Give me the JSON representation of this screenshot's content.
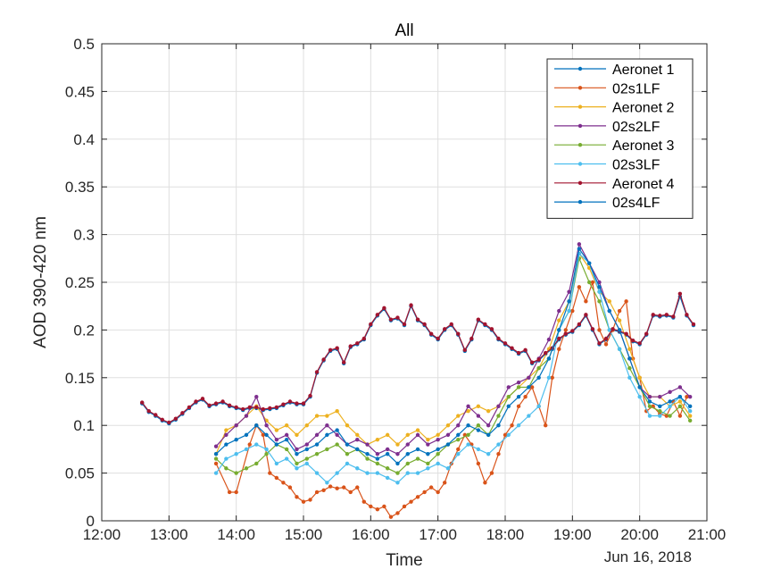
{
  "chart_data": {
    "type": "line",
    "title": "All",
    "xlabel": "Time",
    "ylabel": "AOD 390-420 nm",
    "date_label": "Jun 16, 2018",
    "x_unit": "hour of day",
    "xlim": [
      12,
      21
    ],
    "ylim": [
      0,
      0.5
    ],
    "x_ticks": [
      12,
      13,
      14,
      15,
      16,
      17,
      18,
      19,
      20,
      21
    ],
    "x_tick_labels": [
      "12:00",
      "13:00",
      "14:00",
      "15:00",
      "16:00",
      "17:00",
      "18:00",
      "19:00",
      "20:00",
      "21:00"
    ],
    "y_ticks": [
      0,
      0.05,
      0.1,
      0.15,
      0.2,
      0.25,
      0.3,
      0.35,
      0.4,
      0.45,
      0.5
    ],
    "y_tick_labels": [
      "0",
      "0.05",
      "0.1",
      "0.15",
      "0.2",
      "0.25",
      "0.3",
      "0.35",
      "0.4",
      "0.45",
      "0.5"
    ],
    "grid": true,
    "legend_position": "top-right",
    "series": [
      {
        "name": "Aeronet 1",
        "color": "#0072BD",
        "x": [
          12.6,
          12.7,
          12.8,
          12.9,
          13.0,
          13.1,
          13.2,
          13.3,
          13.4,
          13.5,
          13.6,
          13.7,
          13.8,
          13.9,
          14.0,
          14.1,
          14.2,
          14.3,
          14.4,
          14.5,
          14.6,
          14.7,
          14.8,
          14.9,
          15.0,
          15.1,
          15.2,
          15.3,
          15.4,
          15.5,
          15.6,
          15.7,
          15.8,
          15.9,
          16.0,
          16.1,
          16.2,
          16.3,
          16.4,
          16.5,
          16.6,
          16.7,
          16.8,
          16.9,
          17.0,
          17.1,
          17.2,
          17.3,
          17.4,
          17.5,
          17.6,
          17.7,
          17.8,
          17.9,
          18.0,
          18.1,
          18.2,
          18.3,
          18.4,
          18.5,
          18.6,
          18.7,
          18.8,
          18.9,
          19.0,
          19.1,
          19.2,
          19.3,
          19.4,
          19.5,
          19.6,
          19.7,
          19.8,
          19.9,
          20.0,
          20.1,
          20.2,
          20.3,
          20.4,
          20.5,
          20.6,
          20.7,
          20.8
        ],
        "y": [
          0.123,
          0.114,
          0.11,
          0.105,
          0.102,
          0.106,
          0.112,
          0.118,
          0.124,
          0.127,
          0.12,
          0.122,
          0.124,
          0.12,
          0.118,
          0.116,
          0.118,
          0.118,
          0.116,
          0.117,
          0.118,
          0.121,
          0.124,
          0.122,
          0.122,
          0.13,
          0.155,
          0.168,
          0.178,
          0.18,
          0.165,
          0.182,
          0.185,
          0.19,
          0.205,
          0.215,
          0.222,
          0.21,
          0.212,
          0.205,
          0.225,
          0.21,
          0.205,
          0.195,
          0.19,
          0.2,
          0.205,
          0.195,
          0.178,
          0.19,
          0.21,
          0.205,
          0.2,
          0.19,
          0.185,
          0.18,
          0.175,
          0.178,
          0.165,
          0.168,
          0.175,
          0.18,
          0.19,
          0.195,
          0.198,
          0.205,
          0.215,
          0.2,
          0.185,
          0.19,
          0.2,
          0.198,
          0.195,
          0.188,
          0.185,
          0.195,
          0.215,
          0.214,
          0.215,
          0.213,
          0.235,
          0.215,
          0.205
        ]
      },
      {
        "name": "02s1LF",
        "color": "#D95319",
        "x": [
          13.7,
          13.9,
          14.0,
          14.2,
          14.3,
          14.4,
          14.5,
          14.6,
          14.7,
          14.8,
          14.9,
          15.0,
          15.1,
          15.2,
          15.3,
          15.4,
          15.5,
          15.6,
          15.7,
          15.8,
          15.9,
          16.0,
          16.1,
          16.2,
          16.3,
          16.4,
          16.5,
          16.6,
          16.7,
          16.8,
          16.9,
          17.0,
          17.1,
          17.2,
          17.3,
          17.4,
          17.5,
          17.6,
          17.7,
          17.8,
          17.9,
          18.0,
          18.1,
          18.2,
          18.3,
          18.4,
          18.5,
          18.6,
          18.7,
          18.8,
          18.9,
          19.0,
          19.1,
          19.2,
          19.3,
          19.4,
          19.5,
          19.6,
          19.7,
          19.8,
          19.9,
          20.0,
          20.1,
          20.2,
          20.3,
          20.4,
          20.5,
          20.6,
          20.7
        ],
        "y": [
          0.06,
          0.03,
          0.03,
          0.08,
          0.1,
          0.09,
          0.05,
          0.045,
          0.04,
          0.035,
          0.025,
          0.02,
          0.022,
          0.03,
          0.032,
          0.036,
          0.034,
          0.035,
          0.03,
          0.035,
          0.02,
          0.015,
          0.012,
          0.015,
          0.004,
          0.008,
          0.015,
          0.02,
          0.025,
          0.03,
          0.035,
          0.03,
          0.04,
          0.06,
          0.075,
          0.09,
          0.08,
          0.06,
          0.04,
          0.05,
          0.07,
          0.09,
          0.1,
          0.12,
          0.13,
          0.14,
          0.12,
          0.1,
          0.15,
          0.18,
          0.2,
          0.22,
          0.245,
          0.23,
          0.25,
          0.2,
          0.185,
          0.2,
          0.22,
          0.23,
          0.17,
          0.15,
          0.115,
          0.12,
          0.112,
          0.11,
          0.125,
          0.11,
          0.13
        ]
      },
      {
        "name": "Aeronet 2",
        "color": "#EDB120",
        "x": [
          13.7,
          13.85,
          14.0,
          14.15,
          14.3,
          14.45,
          14.6,
          14.75,
          14.9,
          15.05,
          15.2,
          15.35,
          15.5,
          15.65,
          15.8,
          15.95,
          16.1,
          16.25,
          16.4,
          16.55,
          16.7,
          16.85,
          17.0,
          17.15,
          17.3,
          17.45,
          17.6,
          17.75,
          17.9,
          18.05,
          18.2,
          18.35,
          18.5,
          18.65,
          18.8,
          18.95,
          19.1,
          19.25,
          19.4,
          19.55,
          19.7,
          19.85,
          20.0,
          20.15,
          20.3,
          20.45,
          20.6,
          20.75
        ],
        "y": [
          0.07,
          0.095,
          0.1,
          0.11,
          0.12,
          0.105,
          0.095,
          0.1,
          0.09,
          0.1,
          0.11,
          0.11,
          0.115,
          0.1,
          0.09,
          0.08,
          0.085,
          0.09,
          0.08,
          0.09,
          0.095,
          0.085,
          0.09,
          0.1,
          0.11,
          0.115,
          0.12,
          0.115,
          0.12,
          0.13,
          0.14,
          0.15,
          0.16,
          0.18,
          0.21,
          0.23,
          0.28,
          0.265,
          0.24,
          0.23,
          0.21,
          0.18,
          0.15,
          0.13,
          0.13,
          0.12,
          0.125,
          0.11
        ]
      },
      {
        "name": "02s2LF",
        "color": "#7E2F8E",
        "x": [
          13.7,
          13.85,
          14.0,
          14.15,
          14.3,
          14.45,
          14.6,
          14.75,
          14.9,
          15.05,
          15.2,
          15.35,
          15.5,
          15.65,
          15.8,
          15.95,
          16.1,
          16.25,
          16.4,
          16.55,
          16.7,
          16.85,
          17.0,
          17.15,
          17.3,
          17.45,
          17.6,
          17.75,
          17.9,
          18.05,
          18.2,
          18.35,
          18.5,
          18.65,
          18.8,
          18.95,
          19.1,
          19.25,
          19.4,
          19.55,
          19.7,
          19.85,
          20.0,
          20.15,
          20.3,
          20.45,
          20.6,
          20.75
        ],
        "y": [
          0.078,
          0.09,
          0.1,
          0.11,
          0.13,
          0.1,
          0.085,
          0.09,
          0.075,
          0.08,
          0.09,
          0.1,
          0.09,
          0.08,
          0.085,
          0.08,
          0.07,
          0.075,
          0.07,
          0.08,
          0.09,
          0.08,
          0.085,
          0.09,
          0.1,
          0.12,
          0.11,
          0.1,
          0.12,
          0.14,
          0.145,
          0.15,
          0.17,
          0.19,
          0.22,
          0.24,
          0.29,
          0.27,
          0.25,
          0.22,
          0.2,
          0.17,
          0.14,
          0.13,
          0.13,
          0.135,
          0.14,
          0.13
        ]
      },
      {
        "name": "Aeronet 3",
        "color": "#77AC30",
        "x": [
          13.7,
          13.85,
          14.0,
          14.15,
          14.3,
          14.45,
          14.6,
          14.75,
          14.9,
          15.05,
          15.2,
          15.35,
          15.5,
          15.65,
          15.8,
          15.95,
          16.1,
          16.25,
          16.4,
          16.55,
          16.7,
          16.85,
          17.0,
          17.15,
          17.3,
          17.45,
          17.6,
          17.75,
          17.9,
          18.05,
          18.2,
          18.35,
          18.5,
          18.65,
          18.8,
          18.95,
          19.1,
          19.25,
          19.4,
          19.55,
          19.7,
          19.85,
          20.0,
          20.15,
          20.3,
          20.45,
          20.6,
          20.75
        ],
        "y": [
          0.065,
          0.055,
          0.05,
          0.055,
          0.06,
          0.07,
          0.08,
          0.075,
          0.06,
          0.065,
          0.07,
          0.075,
          0.08,
          0.07,
          0.075,
          0.065,
          0.06,
          0.055,
          0.05,
          0.06,
          0.065,
          0.06,
          0.07,
          0.08,
          0.085,
          0.09,
          0.1,
          0.09,
          0.11,
          0.13,
          0.14,
          0.14,
          0.16,
          0.17,
          0.2,
          0.22,
          0.275,
          0.25,
          0.23,
          0.2,
          0.18,
          0.16,
          0.14,
          0.12,
          0.115,
          0.11,
          0.12,
          0.105
        ]
      },
      {
        "name": "02s3LF",
        "color": "#4DBEEE",
        "x": [
          13.7,
          13.85,
          14.0,
          14.15,
          14.3,
          14.45,
          14.6,
          14.75,
          14.9,
          15.05,
          15.2,
          15.35,
          15.5,
          15.65,
          15.8,
          15.95,
          16.1,
          16.25,
          16.4,
          16.55,
          16.7,
          16.85,
          17.0,
          17.15,
          17.3,
          17.45,
          17.6,
          17.75,
          17.9,
          18.05,
          18.2,
          18.35,
          18.5,
          18.65,
          18.8,
          18.95,
          19.1,
          19.25,
          19.4,
          19.55,
          19.7,
          19.85,
          20.0,
          20.15,
          20.3,
          20.45,
          20.6,
          20.75
        ],
        "y": [
          0.05,
          0.065,
          0.07,
          0.075,
          0.08,
          0.075,
          0.06,
          0.065,
          0.055,
          0.06,
          0.05,
          0.04,
          0.05,
          0.06,
          0.055,
          0.05,
          0.05,
          0.045,
          0.04,
          0.05,
          0.05,
          0.055,
          0.06,
          0.055,
          0.07,
          0.08,
          0.075,
          0.07,
          0.08,
          0.09,
          0.1,
          0.11,
          0.12,
          0.15,
          0.2,
          0.22,
          0.28,
          0.27,
          0.24,
          0.2,
          0.18,
          0.15,
          0.13,
          0.11,
          0.11,
          0.12,
          0.13,
          0.115
        ]
      },
      {
        "name": "Aeronet 4",
        "color": "#A2142F",
        "x": [
          12.6,
          12.7,
          12.8,
          12.9,
          13.0,
          13.1,
          13.2,
          13.3,
          13.4,
          13.5,
          13.6,
          13.7,
          13.8,
          13.9,
          14.0,
          14.1,
          14.2,
          14.3,
          14.4,
          14.5,
          14.6,
          14.7,
          14.8,
          14.9,
          15.0,
          15.1,
          15.2,
          15.3,
          15.4,
          15.5,
          15.6,
          15.7,
          15.8,
          15.9,
          16.0,
          16.1,
          16.2,
          16.3,
          16.4,
          16.5,
          16.6,
          16.7,
          16.8,
          16.9,
          17.0,
          17.1,
          17.2,
          17.3,
          17.4,
          17.5,
          17.6,
          17.7,
          17.8,
          17.9,
          18.0,
          18.1,
          18.2,
          18.3,
          18.4,
          18.5,
          18.6,
          18.7,
          18.8,
          18.9,
          19.0,
          19.1,
          19.2,
          19.3,
          19.4,
          19.5,
          19.6,
          19.7,
          19.8,
          19.9,
          20.0,
          20.1,
          20.2,
          20.3,
          20.4,
          20.5,
          20.6,
          20.7,
          20.8
        ],
        "y": [
          0.124,
          0.115,
          0.111,
          0.106,
          0.103,
          0.107,
          0.113,
          0.119,
          0.125,
          0.128,
          0.121,
          0.123,
          0.125,
          0.121,
          0.119,
          0.117,
          0.119,
          0.119,
          0.117,
          0.118,
          0.119,
          0.122,
          0.125,
          0.123,
          0.123,
          0.131,
          0.156,
          0.169,
          0.179,
          0.181,
          0.166,
          0.183,
          0.186,
          0.191,
          0.206,
          0.216,
          0.223,
          0.211,
          0.213,
          0.206,
          0.226,
          0.211,
          0.206,
          0.196,
          0.191,
          0.201,
          0.206,
          0.196,
          0.179,
          0.191,
          0.211,
          0.206,
          0.201,
          0.191,
          0.186,
          0.181,
          0.176,
          0.179,
          0.166,
          0.169,
          0.176,
          0.181,
          0.191,
          0.196,
          0.199,
          0.206,
          0.216,
          0.201,
          0.186,
          0.191,
          0.201,
          0.199,
          0.196,
          0.189,
          0.186,
          0.196,
          0.216,
          0.215,
          0.216,
          0.214,
          0.238,
          0.216,
          0.206
        ]
      },
      {
        "name": "02s4LF",
        "color": "#0072BD",
        "x": [
          13.7,
          13.85,
          14.0,
          14.15,
          14.3,
          14.45,
          14.6,
          14.75,
          14.9,
          15.05,
          15.2,
          15.35,
          15.5,
          15.65,
          15.8,
          15.95,
          16.1,
          16.25,
          16.4,
          16.55,
          16.7,
          16.85,
          17.0,
          17.15,
          17.3,
          17.45,
          17.6,
          17.75,
          17.9,
          18.05,
          18.2,
          18.35,
          18.5,
          18.65,
          18.8,
          18.95,
          19.1,
          19.25,
          19.4,
          19.55,
          19.7,
          19.85,
          20.0,
          20.15,
          20.3,
          20.45,
          20.6,
          20.75
        ],
        "y": [
          0.07,
          0.08,
          0.085,
          0.09,
          0.1,
          0.09,
          0.08,
          0.085,
          0.07,
          0.075,
          0.08,
          0.09,
          0.095,
          0.08,
          0.075,
          0.07,
          0.065,
          0.07,
          0.06,
          0.07,
          0.075,
          0.07,
          0.075,
          0.08,
          0.09,
          0.1,
          0.095,
          0.09,
          0.1,
          0.12,
          0.13,
          0.14,
          0.15,
          0.17,
          0.2,
          0.23,
          0.285,
          0.27,
          0.245,
          0.22,
          0.2,
          0.17,
          0.14,
          0.125,
          0.12,
          0.125,
          0.13,
          0.12
        ]
      }
    ]
  }
}
